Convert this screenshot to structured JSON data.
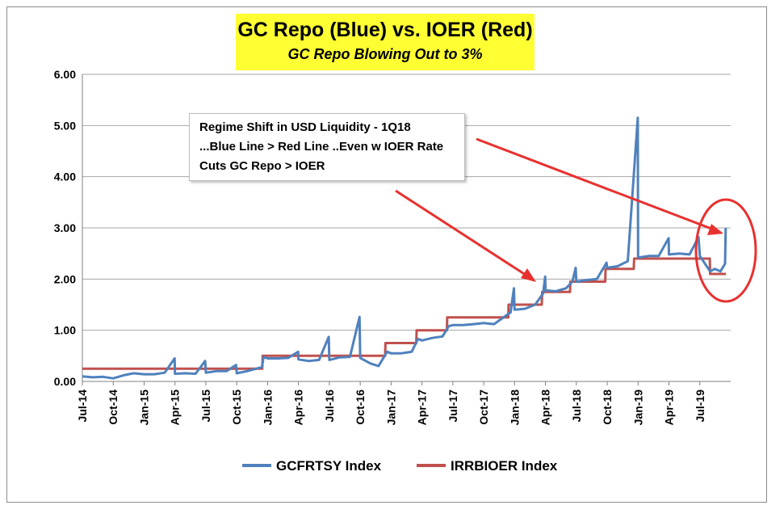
{
  "chart_data": {
    "type": "line",
    "title": "GC Repo (Blue) vs. IOER (Red)",
    "subtitle": "GC Repo Blowing Out to 3%",
    "ylim": [
      0,
      6
    ],
    "yticks": [
      "0.00",
      "1.00",
      "2.00",
      "3.00",
      "4.00",
      "5.00",
      "6.00"
    ],
    "xlim": [
      "2014-07",
      "2019-10"
    ],
    "xticks": [
      "Jul-14",
      "Oct-14",
      "Jan-15",
      "Apr-15",
      "Jul-15",
      "Oct-15",
      "Jan-16",
      "Apr-16",
      "Jul-16",
      "Oct-16",
      "Jan-17",
      "Apr-17",
      "Jul-17",
      "Oct-17",
      "Jan-18",
      "Apr-18",
      "Jul-18",
      "Oct-18",
      "Jan-19",
      "Apr-19",
      "Jul-19"
    ],
    "grid": true,
    "legend_position": "bottom",
    "annotation": [
      "Regime Shift in USD Liquidity - 1Q18",
      "...Blue Line > Red Line ..Even w IOER Rate",
      "Cuts GC Repo >  IOER"
    ],
    "series": [
      {
        "name": "GCFRTSY Index",
        "color": "#4f81bd",
        "points": [
          [
            "2014-07",
            0.1
          ],
          [
            "2014-08",
            0.08
          ],
          [
            "2014-09",
            0.09
          ],
          [
            "2014-10",
            0.06
          ],
          [
            "2014-11",
            0.12
          ],
          [
            "2014-12",
            0.16
          ],
          [
            "2015-01",
            0.14
          ],
          [
            "2015-02",
            0.14
          ],
          [
            "2015-03",
            0.17
          ],
          [
            "2015-03-31",
            0.45
          ],
          [
            "2015-04",
            0.15
          ],
          [
            "2015-05",
            0.16
          ],
          [
            "2015-06",
            0.15
          ],
          [
            "2015-06-30",
            0.4
          ],
          [
            "2015-07",
            0.17
          ],
          [
            "2015-08",
            0.2
          ],
          [
            "2015-09",
            0.2
          ],
          [
            "2015-09-30",
            0.32
          ],
          [
            "2015-10",
            0.16
          ],
          [
            "2015-11",
            0.2
          ],
          [
            "2015-12-15",
            0.28
          ],
          [
            "2015-12-20",
            0.48
          ],
          [
            "2016-01",
            0.45
          ],
          [
            "2016-02",
            0.45
          ],
          [
            "2016-03",
            0.46
          ],
          [
            "2016-03-31",
            0.58
          ],
          [
            "2016-04",
            0.43
          ],
          [
            "2016-05",
            0.4
          ],
          [
            "2016-06",
            0.42
          ],
          [
            "2016-06-30",
            0.87
          ],
          [
            "2016-07",
            0.42
          ],
          [
            "2016-08",
            0.47
          ],
          [
            "2016-09",
            0.48
          ],
          [
            "2016-09-30",
            1.26
          ],
          [
            "2016-10",
            0.46
          ],
          [
            "2016-11",
            0.35
          ],
          [
            "2016-11-25",
            0.3
          ],
          [
            "2016-12-20",
            0.58
          ],
          [
            "2017-01",
            0.55
          ],
          [
            "2017-02",
            0.55
          ],
          [
            "2017-03",
            0.58
          ],
          [
            "2017-03-20",
            0.83
          ],
          [
            "2017-04",
            0.8
          ],
          [
            "2017-05",
            0.85
          ],
          [
            "2017-06",
            0.88
          ],
          [
            "2017-06-20",
            1.08
          ],
          [
            "2017-07",
            1.1
          ],
          [
            "2017-08",
            1.1
          ],
          [
            "2017-09",
            1.12
          ],
          [
            "2017-10",
            1.14
          ],
          [
            "2017-11",
            1.12
          ],
          [
            "2017-12-20",
            1.35
          ],
          [
            "2017-12-30",
            1.82
          ],
          [
            "2018-01",
            1.4
          ],
          [
            "2018-02",
            1.42
          ],
          [
            "2018-03",
            1.5
          ],
          [
            "2018-03-25",
            1.72
          ],
          [
            "2018-03-31",
            2.05
          ],
          [
            "2018-04",
            1.78
          ],
          [
            "2018-05",
            1.76
          ],
          [
            "2018-06",
            1.82
          ],
          [
            "2018-06-20",
            1.95
          ],
          [
            "2018-06-30",
            2.22
          ],
          [
            "2018-07",
            1.95
          ],
          [
            "2018-08",
            1.98
          ],
          [
            "2018-09",
            2.0
          ],
          [
            "2018-09-30",
            2.32
          ],
          [
            "2018-10",
            2.22
          ],
          [
            "2018-11",
            2.25
          ],
          [
            "2018-12",
            2.35
          ],
          [
            "2018-12-31",
            5.15
          ],
          [
            "2019-01",
            2.42
          ],
          [
            "2019-02",
            2.45
          ],
          [
            "2019-03",
            2.45
          ],
          [
            "2019-03-31",
            2.8
          ],
          [
            "2019-04",
            2.48
          ],
          [
            "2019-05",
            2.5
          ],
          [
            "2019-06",
            2.48
          ],
          [
            "2019-06-28",
            2.82
          ],
          [
            "2019-07",
            2.45
          ],
          [
            "2019-08-01",
            2.15
          ],
          [
            "2019-08-15",
            2.2
          ],
          [
            "2019-09-01",
            2.15
          ],
          [
            "2019-09-15",
            2.3
          ],
          [
            "2019-09-17",
            3.0
          ]
        ]
      },
      {
        "name": "IRRBIOER Index",
        "color": "#c0504d",
        "points": [
          [
            "2014-07",
            0.25
          ],
          [
            "2015-12-16",
            0.25
          ],
          [
            "2015-12-17",
            0.5
          ],
          [
            "2016-12-14",
            0.5
          ],
          [
            "2016-12-15",
            0.75
          ],
          [
            "2017-03-15",
            0.75
          ],
          [
            "2017-03-16",
            1.0
          ],
          [
            "2017-06-14",
            1.0
          ],
          [
            "2017-06-15",
            1.25
          ],
          [
            "2017-12-13",
            1.25
          ],
          [
            "2017-12-14",
            1.5
          ],
          [
            "2018-03-21",
            1.5
          ],
          [
            "2018-03-22",
            1.75
          ],
          [
            "2018-06-13",
            1.75
          ],
          [
            "2018-06-14",
            1.95
          ],
          [
            "2018-09-26",
            1.95
          ],
          [
            "2018-09-27",
            2.2
          ],
          [
            "2018-12-19",
            2.2
          ],
          [
            "2018-12-20",
            2.4
          ],
          [
            "2019-07-31",
            2.4
          ],
          [
            "2019-08-01",
            2.1
          ],
          [
            "2019-09-18",
            2.1
          ]
        ]
      }
    ]
  }
}
